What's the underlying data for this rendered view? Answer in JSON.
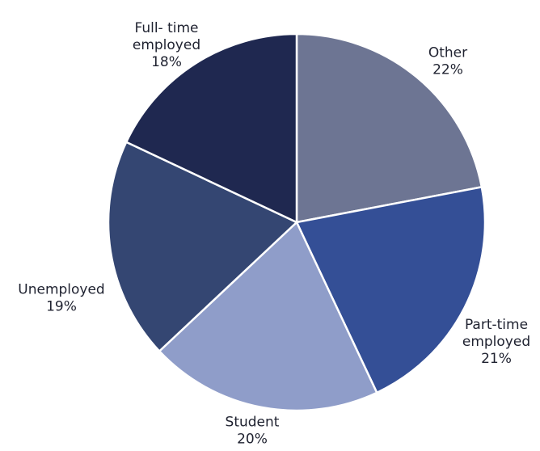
{
  "chart_data": {
    "type": "pie",
    "title": "",
    "slices": [
      {
        "label": [
          "Other",
          "22%"
        ],
        "category": "Other",
        "value": 22,
        "color": "#6d7593"
      },
      {
        "label": [
          "Part-time",
          "employed",
          "21%"
        ],
        "category": "Part-time employed",
        "value": 21,
        "color": "#344f96"
      },
      {
        "label": [
          "Student",
          "20%"
        ],
        "category": "Student",
        "value": 20,
        "color": "#8f9dc9"
      },
      {
        "label": [
          "Unemployed",
          "19%"
        ],
        "category": "Unemployed",
        "value": 19,
        "color": "#344672"
      },
      {
        "label": [
          "Full- time",
          "employed",
          "18%"
        ],
        "category": "Full- time employed",
        "value": 18,
        "color": "#1f2850"
      }
    ]
  }
}
